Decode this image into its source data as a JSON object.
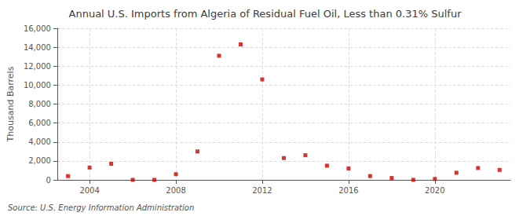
{
  "chart_data": {
    "type": "scatter",
    "title": "Annual U.S. Imports from Algeria of Residual Fuel Oil, Less than 0.31% Sulfur",
    "ylabel": "Thousand Barrels",
    "source": "Source: U.S. Energy Information Administration",
    "x": [
      2003,
      2004,
      2005,
      2006,
      2007,
      2008,
      2009,
      2010,
      2011,
      2012,
      2013,
      2014,
      2015,
      2016,
      2017,
      2018,
      2019,
      2020,
      2021,
      2022,
      2023
    ],
    "values": [
      400,
      1300,
      1700,
      0,
      0,
      600,
      3000,
      13100,
      14300,
      10600,
      2300,
      2600,
      1500,
      1200,
      400,
      200,
      0,
      100,
      750,
      1250,
      1050
    ],
    "color": "#cc0000",
    "marker": "square",
    "xlim": [
      2002.5,
      2023.5
    ],
    "xticks": [
      2004,
      2008,
      2012,
      2016,
      2020
    ],
    "ylim": [
      0,
      16000
    ],
    "yticks": [
      0,
      {
        "value": 2000,
        "label": "2,000"
      },
      {
        "value": 4000,
        "label": "4,000"
      },
      {
        "value": 6000,
        "label": "6,000"
      },
      {
        "value": 8000,
        "label": "8,000"
      },
      {
        "value": 10000,
        "label": "10,000"
      },
      {
        "value": 12000,
        "label": "12,000"
      },
      {
        "value": 14000,
        "label": "14,000"
      },
      {
        "value": 16000,
        "label": "16,000"
      }
    ],
    "grid": true
  }
}
